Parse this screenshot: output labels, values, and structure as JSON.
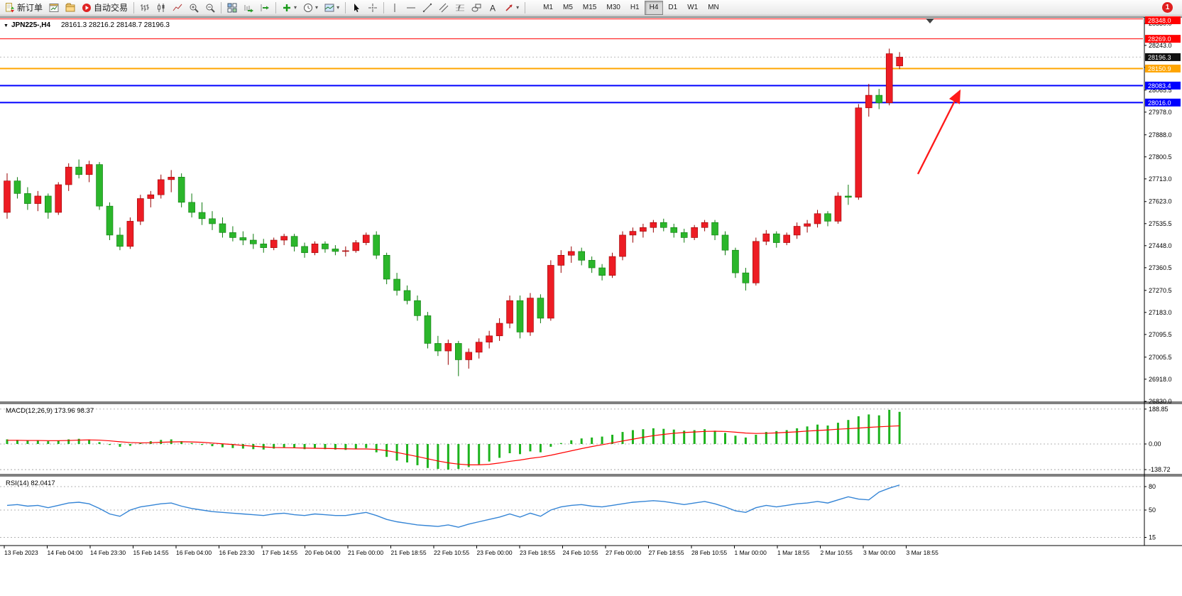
{
  "toolbar": {
    "new_order_label": "新订单",
    "auto_trading_label": "自动交易",
    "timeframes": [
      "M1",
      "M5",
      "M15",
      "M30",
      "H1",
      "H4",
      "D1",
      "W1",
      "MN"
    ],
    "active_timeframe": "H4",
    "notification_badge": "1",
    "icons": [
      "new-order-icon",
      "charts-icon",
      "profiles-icon",
      "auto-trading-icon",
      "bar-chart-icon",
      "candlestick-chart-icon",
      "line-chart-icon",
      "zoom-in-icon",
      "zoom-out-icon",
      "tile-windows-icon",
      "auto-scroll-icon",
      "chart-shift-icon",
      "indicators-icon",
      "periods-icon",
      "templates-icon",
      "cursor-icon",
      "crosshair-icon",
      "vertical-line-icon",
      "horizontal-line-icon",
      "trend-line-icon",
      "channel-icon",
      "fibonacci-icon",
      "shapes-icon",
      "text-icon",
      "arrows-icon"
    ]
  },
  "chart": {
    "symbol_period": "JPN225-,H4",
    "ohlc_text": "28161.3 28216.2 28148.7 28196.3",
    "macd_label": "MACD(12,26,9) 173.96 98.37",
    "rsi_label": "RSI(14) 82.0417"
  },
  "chart_data": {
    "type": "candlestick",
    "symbol": "JPN225-",
    "timeframe": "H4",
    "current_bar": {
      "open": 28161.3,
      "high": 28216.2,
      "low": 28148.7,
      "close": 28196.3
    },
    "price_axis": {
      "min": 26830.0,
      "max": 28330.0,
      "ticks": [
        "28330.0",
        "28243.0",
        "28155.5",
        "28065.5",
        "27978.0",
        "27888.0",
        "27800.5",
        "27713.0",
        "27623.0",
        "27535.5",
        "27448.0",
        "27360.5",
        "27270.5",
        "27183.0",
        "27095.5",
        "27005.5",
        "26918.0",
        "26830.0"
      ]
    },
    "candles": [
      [
        27580,
        27735,
        27555,
        27705
      ],
      [
        27705,
        27720,
        27635,
        27655
      ],
      [
        27655,
        27680,
        27590,
        27615
      ],
      [
        27615,
        27665,
        27585,
        27645
      ],
      [
        27645,
        27655,
        27555,
        27580
      ],
      [
        27580,
        27700,
        27570,
        27690
      ],
      [
        27690,
        27775,
        27665,
        27760
      ],
      [
        27760,
        27790,
        27715,
        27730
      ],
      [
        27730,
        27785,
        27700,
        27770
      ],
      [
        27770,
        27780,
        27590,
        27605
      ],
      [
        27605,
        27620,
        27470,
        27490
      ],
      [
        27490,
        27520,
        27430,
        27445
      ],
      [
        27445,
        27560,
        27435,
        27545
      ],
      [
        27545,
        27650,
        27530,
        27635
      ],
      [
        27635,
        27665,
        27600,
        27650
      ],
      [
        27650,
        27730,
        27635,
        27710
      ],
      [
        27710,
        27748,
        27660,
        27720
      ],
      [
        27720,
        27735,
        27600,
        27620
      ],
      [
        27620,
        27655,
        27560,
        27580
      ],
      [
        27580,
        27620,
        27530,
        27555
      ],
      [
        27555,
        27585,
        27510,
        27535
      ],
      [
        27535,
        27560,
        27480,
        27500
      ],
      [
        27500,
        27525,
        27465,
        27480
      ],
      [
        27480,
        27505,
        27450,
        27470
      ],
      [
        27470,
        27495,
        27435,
        27455
      ],
      [
        27455,
        27475,
        27420,
        27440
      ],
      [
        27440,
        27480,
        27430,
        27470
      ],
      [
        27470,
        27495,
        27450,
        27485
      ],
      [
        27485,
        27495,
        27425,
        27445
      ],
      [
        27445,
        27460,
        27400,
        27420
      ],
      [
        27420,
        27465,
        27410,
        27455
      ],
      [
        27455,
        27465,
        27420,
        27435
      ],
      [
        27435,
        27450,
        27410,
        27425
      ],
      [
        27425,
        27445,
        27405,
        27428
      ],
      [
        27428,
        27470,
        27420,
        27460
      ],
      [
        27460,
        27500,
        27450,
        27490
      ],
      [
        27490,
        27505,
        27395,
        27410
      ],
      [
        27410,
        27420,
        27295,
        27315
      ],
      [
        27315,
        27340,
        27250,
        27270
      ],
      [
        27270,
        27290,
        27215,
        27230
      ],
      [
        27230,
        27250,
        27150,
        27170
      ],
      [
        27170,
        27185,
        27040,
        27060
      ],
      [
        27060,
        27090,
        27010,
        27030
      ],
      [
        27030,
        27075,
        26975,
        27060
      ],
      [
        27060,
        27070,
        26930,
        26995
      ],
      [
        26995,
        27040,
        26960,
        27025
      ],
      [
        27025,
        27080,
        27000,
        27065
      ],
      [
        27065,
        27110,
        27040,
        27090
      ],
      [
        27090,
        27160,
        27070,
        27140
      ],
      [
        27140,
        27250,
        27120,
        27230
      ],
      [
        27230,
        27250,
        27080,
        27105
      ],
      [
        27105,
        27260,
        27090,
        27240
      ],
      [
        27240,
        27255,
        27140,
        27160
      ],
      [
        27160,
        27390,
        27150,
        27370
      ],
      [
        27370,
        27430,
        27340,
        27410
      ],
      [
        27410,
        27445,
        27380,
        27425
      ],
      [
        27425,
        27440,
        27370,
        27390
      ],
      [
        27390,
        27405,
        27340,
        27360
      ],
      [
        27360,
        27375,
        27310,
        27330
      ],
      [
        27330,
        27420,
        27320,
        27405
      ],
      [
        27405,
        27505,
        27390,
        27490
      ],
      [
        27490,
        27520,
        27460,
        27505
      ],
      [
        27505,
        27535,
        27480,
        27520
      ],
      [
        27520,
        27550,
        27500,
        27540
      ],
      [
        27540,
        27555,
        27505,
        27520
      ],
      [
        27520,
        27535,
        27480,
        27500
      ],
      [
        27500,
        27515,
        27460,
        27480
      ],
      [
        27480,
        27530,
        27470,
        27520
      ],
      [
        27520,
        27550,
        27505,
        27540
      ],
      [
        27540,
        27550,
        27470,
        27490
      ],
      [
        27490,
        27505,
        27410,
        27430
      ],
      [
        27430,
        27440,
        27320,
        27340
      ],
      [
        27340,
        27360,
        27270,
        27300
      ],
      [
        27300,
        27480,
        27290,
        27465
      ],
      [
        27465,
        27510,
        27450,
        27495
      ],
      [
        27495,
        27505,
        27440,
        27460
      ],
      [
        27460,
        27500,
        27450,
        27490
      ],
      [
        27490,
        27540,
        27475,
        27525
      ],
      [
        27525,
        27550,
        27500,
        27535
      ],
      [
        27535,
        27590,
        27520,
        27575
      ],
      [
        27575,
        27585,
        27525,
        27545
      ],
      [
        27545,
        27660,
        27535,
        27645
      ],
      [
        27645,
        27690,
        27610,
        27640
      ],
      [
        27640,
        28010,
        27630,
        27995
      ],
      [
        27995,
        28090,
        27960,
        28045
      ],
      [
        28045,
        28070,
        27990,
        28015
      ],
      [
        28015,
        28230,
        28005,
        28210
      ],
      [
        28161.3,
        28216.2,
        28148.7,
        28196.3
      ]
    ],
    "horizontal_lines": [
      {
        "price": 28348.0,
        "label": "28348.0",
        "color": "#ff0000",
        "width": 1
      },
      {
        "price": 28269.0,
        "label": "28269.0",
        "color": "#ff0000",
        "width": 1
      },
      {
        "price": 28150.9,
        "label": "28150.9",
        "color": "#ffa500",
        "width": 2
      },
      {
        "price": 28083.4,
        "label": "28083.4",
        "color": "#0000ff",
        "width": 2
      },
      {
        "price": 28016.0,
        "label": "28016.0",
        "color": "#0000ff",
        "width": 2
      }
    ],
    "current_price": {
      "value": 28196.3,
      "label": "28196.3",
      "badge_color": "#101010"
    },
    "colors": {
      "up": "#ed1c24",
      "up_border": "#990000",
      "down": "#2bb62b",
      "down_border": "#0c7a0c",
      "macd_bar": "#1db31d",
      "macd_signal": "#ff0000",
      "rsi": "#3585d6"
    },
    "macd": {
      "name": "MACD(12,26,9)",
      "main_value": 173.96,
      "signal_value": 98.37,
      "axis_ticks": [
        "188.85",
        "0.00",
        "-138.72"
      ],
      "histogram": [
        25,
        22,
        18,
        20,
        15,
        18,
        25,
        28,
        24,
        10,
        -5,
        -15,
        -10,
        5,
        15,
        22,
        25,
        15,
        5,
        -5,
        -12,
        -18,
        -22,
        -25,
        -28,
        -30,
        -25,
        -20,
        -22,
        -28,
        -25,
        -28,
        -30,
        -32,
        -28,
        -22,
        -45,
        -70,
        -90,
        -100,
        -115,
        -130,
        -135,
        -138.7,
        -135,
        -125,
        -110,
        -95,
        -75,
        -50,
        -55,
        -40,
        -45,
        -15,
        5,
        20,
        30,
        35,
        40,
        50,
        65,
        75,
        80,
        85,
        82,
        78,
        72,
        75,
        80,
        72,
        60,
        45,
        35,
        50,
        65,
        70,
        75,
        85,
        95,
        105,
        100,
        115,
        130,
        150,
        160,
        155,
        185,
        173.96
      ],
      "signal": [
        20,
        20,
        19,
        19,
        18,
        18,
        19,
        21,
        22,
        21,
        17,
        12,
        8,
        6,
        7,
        9,
        11,
        12,
        11,
        9,
        5,
        1,
        -3,
        -8,
        -12,
        -16,
        -19,
        -20,
        -21,
        -22,
        -23,
        -24,
        -25,
        -26,
        -27,
        -27,
        -29,
        -36,
        -46,
        -57,
        -68,
        -80,
        -92,
        -102,
        -109,
        -113,
        -113,
        -110,
        -103,
        -94,
        -87,
        -78,
        -71,
        -61,
        -49,
        -37,
        -25,
        -14,
        -4,
        6,
        16,
        26,
        36,
        45,
        52,
        58,
        62,
        65,
        68,
        69,
        68,
        64,
        59,
        57,
        58,
        60,
        63,
        66,
        70,
        73,
        76,
        80,
        83,
        86,
        90,
        93,
        96,
        98.37
      ]
    },
    "rsi": {
      "name": "RSI(14)",
      "value": 82.0417,
      "levels": [
        80,
        50,
        15
      ],
      "series": [
        56,
        57,
        55,
        56,
        53,
        56,
        59,
        60,
        58,
        52,
        45,
        42,
        50,
        54,
        56,
        58,
        59,
        55,
        52,
        50,
        48,
        47,
        46,
        45,
        44,
        43,
        45,
        46,
        44,
        43,
        45,
        44,
        43,
        43,
        45,
        47,
        43,
        38,
        35,
        33,
        31,
        30,
        29,
        31,
        28,
        32,
        35,
        38,
        41,
        45,
        41,
        46,
        42,
        50,
        54,
        56,
        57,
        55,
        54,
        56,
        58,
        60,
        61,
        62,
        61,
        59,
        57,
        59,
        61,
        58,
        54,
        49,
        47,
        53,
        56,
        54,
        56,
        58,
        59,
        61,
        59,
        63,
        67,
        64,
        63,
        73,
        78,
        82.0417
      ]
    },
    "time_axis": [
      "13 Feb 2023",
      "14 Feb 04:00",
      "14 Feb 23:30",
      "15 Feb 14:55",
      "16 Feb 04:00",
      "16 Feb 23:30",
      "17 Feb 14:55",
      "20 Feb 04:00",
      "21 Feb 00:00",
      "21 Feb 18:55",
      "22 Feb 10:55",
      "23 Feb 00:00",
      "23 Feb 18:55",
      "24 Feb 10:55",
      "27 Feb 00:00",
      "27 Feb 18:55",
      "28 Feb 10:55",
      "1 Mar 00:00",
      "1 Mar 18:55",
      "2 Mar 10:55",
      "3 Mar 00:00",
      "3 Mar 18:55"
    ],
    "annotation_arrow": {
      "from": {
        "x": 1293,
        "y": 223
      },
      "to": {
        "x": 1352,
        "y": 106
      },
      "color": "#ff1a1a"
    }
  }
}
